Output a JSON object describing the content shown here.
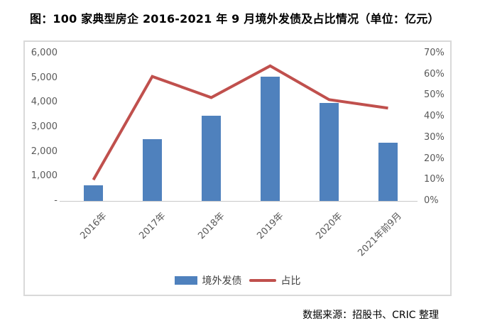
{
  "title": "图：100 家典型房企 2016-2021 年 9 月境外发债及占比情况（单位：亿元）",
  "source": "数据来源：招股书、CRIC 整理",
  "colors": {
    "bar": "#4f81bd",
    "line": "#c0504d",
    "tick_text": "#595959",
    "frame_border": "#d9d9d9",
    "axis_line": "#c9c9c9"
  },
  "chart_data": {
    "type": "bar+line combo",
    "title": "100家典型房企2016-2021年9月境外发债及占比情况",
    "unit": "亿元",
    "categories": [
      "2016年",
      "2017年",
      "2018年",
      "2019年",
      "2020年",
      "2021年前9月"
    ],
    "series": [
      {
        "name": "境外发债",
        "type": "bar",
        "axis": "left",
        "color": "#4f81bd",
        "values": [
          630,
          2500,
          3450,
          5050,
          3970,
          2370
        ]
      },
      {
        "name": "占比",
        "type": "line",
        "axis": "right",
        "color": "#c0504d",
        "unit": "%",
        "values": [
          10,
          59,
          49,
          64,
          48,
          44
        ]
      }
    ],
    "left_axis": {
      "min": 0,
      "max": 6000,
      "tick_step": 1000,
      "tick_labels": [
        "6,000",
        "5,000",
        "4,000",
        "3,000",
        "2,000",
        "1,000",
        "-"
      ]
    },
    "right_axis": {
      "min": 0,
      "max": 70,
      "tick_step": 10,
      "tick_labels": [
        "70%",
        "60%",
        "50%",
        "40%",
        "30%",
        "20%",
        "10%",
        "0%"
      ]
    },
    "grid": false,
    "legend_position": "bottom"
  }
}
